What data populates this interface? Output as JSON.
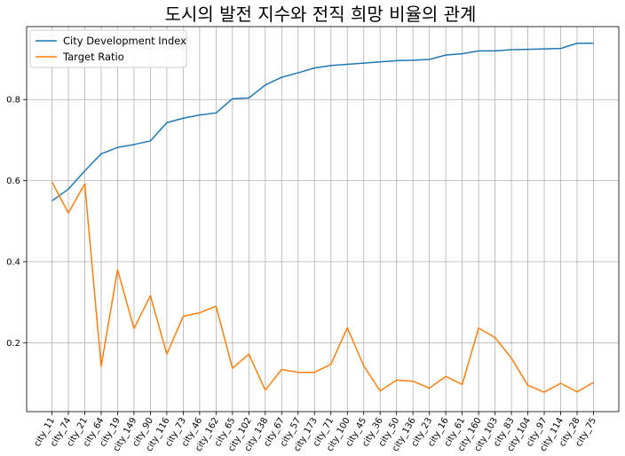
{
  "chart_data": {
    "type": "line",
    "title": "도시의 발전 지수와 전직 희망 비율의 관계",
    "xlabel": "",
    "ylabel": "",
    "categories": [
      "city_11",
      "city_74",
      "city_21",
      "city_64",
      "city_19",
      "city_149",
      "city_90",
      "city_116",
      "city_73",
      "city_46",
      "city_162",
      "city_65",
      "city_102",
      "city_138",
      "city_67",
      "city_57",
      "city_173",
      "city_71",
      "city_100",
      "city_45",
      "city_36",
      "city_50",
      "city_136",
      "city_23",
      "city_16",
      "city_61",
      "city_160",
      "city_103",
      "city_83",
      "city_104",
      "city_97",
      "city_114",
      "city_28",
      "city_75"
    ],
    "series": [
      {
        "name": "City Development Index",
        "color": "#1f77b4",
        "values": [
          0.55,
          0.579,
          0.624,
          0.666,
          0.682,
          0.689,
          0.698,
          0.743,
          0.754,
          0.762,
          0.767,
          0.802,
          0.804,
          0.836,
          0.855,
          0.866,
          0.878,
          0.884,
          0.887,
          0.89,
          0.893,
          0.896,
          0.897,
          0.899,
          0.91,
          0.913,
          0.92,
          0.92,
          0.923,
          0.924,
          0.925,
          0.926,
          0.939,
          0.939
        ]
      },
      {
        "name": "Target Ratio",
        "color": "#ff7f0e",
        "values": [
          0.597,
          0.52,
          0.592,
          0.142,
          0.38,
          0.235,
          0.316,
          0.172,
          0.265,
          0.274,
          0.29,
          0.137,
          0.172,
          0.083,
          0.134,
          0.127,
          0.127,
          0.147,
          0.237,
          0.143,
          0.081,
          0.108,
          0.105,
          0.088,
          0.117,
          0.097,
          0.236,
          0.213,
          0.162,
          0.095,
          0.078,
          0.1,
          0.079,
          0.102
        ]
      }
    ],
    "ylim": [
      0.03,
      0.98
    ],
    "yticks": [
      0.2,
      0.4,
      0.6,
      0.8
    ],
    "grid": true,
    "legend_position": "top-left"
  }
}
